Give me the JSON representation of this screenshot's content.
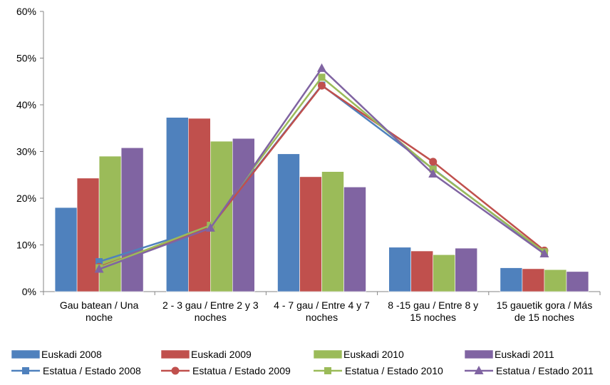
{
  "chart_data": {
    "type": "bar",
    "categories": [
      [
        "Gau batean / Una",
        "noche"
      ],
      [
        "2 - 3 gau / Entre 2 y 3",
        "noches"
      ],
      [
        "4 - 7 gau / Entre 4 y 7",
        "noches"
      ],
      [
        "8 -15 gau / Entre 8 y",
        "15 noches"
      ],
      [
        "15 gauetik gora / Más",
        "de 15 noches"
      ]
    ],
    "ylim": [
      0,
      60
    ],
    "yticks": [
      0,
      10,
      20,
      30,
      40,
      50,
      60
    ],
    "ytick_labels": [
      "0%",
      "10%",
      "20%",
      "30%",
      "40%",
      "50%",
      "60%"
    ],
    "grid": false,
    "legend_position": "bottom",
    "bar_series": [
      {
        "name": "Euskadi 2008",
        "color": "#4f81bd",
        "values": [
          18,
          37.3,
          29.5,
          9.5,
          5.1
        ]
      },
      {
        "name": "Euskadi 2009",
        "color": "#c0504d",
        "values": [
          24.3,
          37.1,
          24.6,
          8.7,
          4.9
        ]
      },
      {
        "name": "Euskadi 2010",
        "color": "#9bbb59",
        "values": [
          29,
          32.2,
          25.7,
          7.9,
          4.7
        ]
      },
      {
        "name": "Euskadi 2011",
        "color": "#8064a2",
        "values": [
          30.8,
          32.8,
          22.4,
          9.3,
          4.3
        ]
      }
    ],
    "line_series": [
      {
        "name": "Estatua / Estado 2008",
        "color": "#4f81bd",
        "marker": "square",
        "values": [
          6.4,
          14,
          44.2,
          26.3,
          8.3
        ]
      },
      {
        "name": "Estatua / Estado 2009",
        "color": "#c0504d",
        "marker": "circle",
        "values": [
          5.3,
          13.8,
          44.1,
          27.8,
          8.8
        ]
      },
      {
        "name": "Estatua / Estado 2010",
        "color": "#9bbb59",
        "marker": "square",
        "values": [
          5.1,
          14.2,
          45.9,
          26.2,
          8.5
        ]
      },
      {
        "name": "Estatua / Estado 2011",
        "color": "#8064a2",
        "marker": "triangle",
        "values": [
          4.8,
          13.6,
          47.8,
          25.2,
          8.1
        ]
      }
    ]
  }
}
